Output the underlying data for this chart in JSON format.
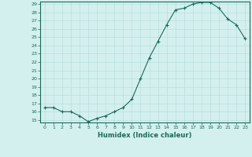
{
  "x": [
    0,
    1,
    2,
    3,
    4,
    5,
    6,
    7,
    8,
    9,
    10,
    11,
    12,
    13,
    14,
    15,
    16,
    17,
    18,
    19,
    20,
    21,
    22,
    23
  ],
  "y": [
    16.5,
    16.5,
    16.0,
    16.0,
    15.5,
    14.8,
    15.2,
    15.5,
    16.0,
    16.5,
    17.5,
    20.0,
    22.5,
    24.5,
    26.5,
    28.3,
    28.5,
    29.0,
    29.2,
    29.2,
    28.5,
    27.2,
    26.5,
    24.8
  ],
  "xlabel": "Humidex (Indice chaleur)",
  "ylim": [
    15,
    29
  ],
  "xlim": [
    -0.5,
    23.5
  ],
  "yticks": [
    15,
    16,
    17,
    18,
    19,
    20,
    21,
    22,
    23,
    24,
    25,
    26,
    27,
    28,
    29
  ],
  "xticks": [
    0,
    1,
    2,
    3,
    4,
    5,
    6,
    7,
    8,
    9,
    10,
    11,
    12,
    13,
    14,
    15,
    16,
    17,
    18,
    19,
    20,
    21,
    22,
    23
  ],
  "line_color": "#1a6b5a",
  "bg_color": "#d4f0ee",
  "grid_color": "#b8dedd",
  "marker": "+",
  "marker_size": 3,
  "linewidth": 0.8,
  "markeredgewidth": 0.8
}
